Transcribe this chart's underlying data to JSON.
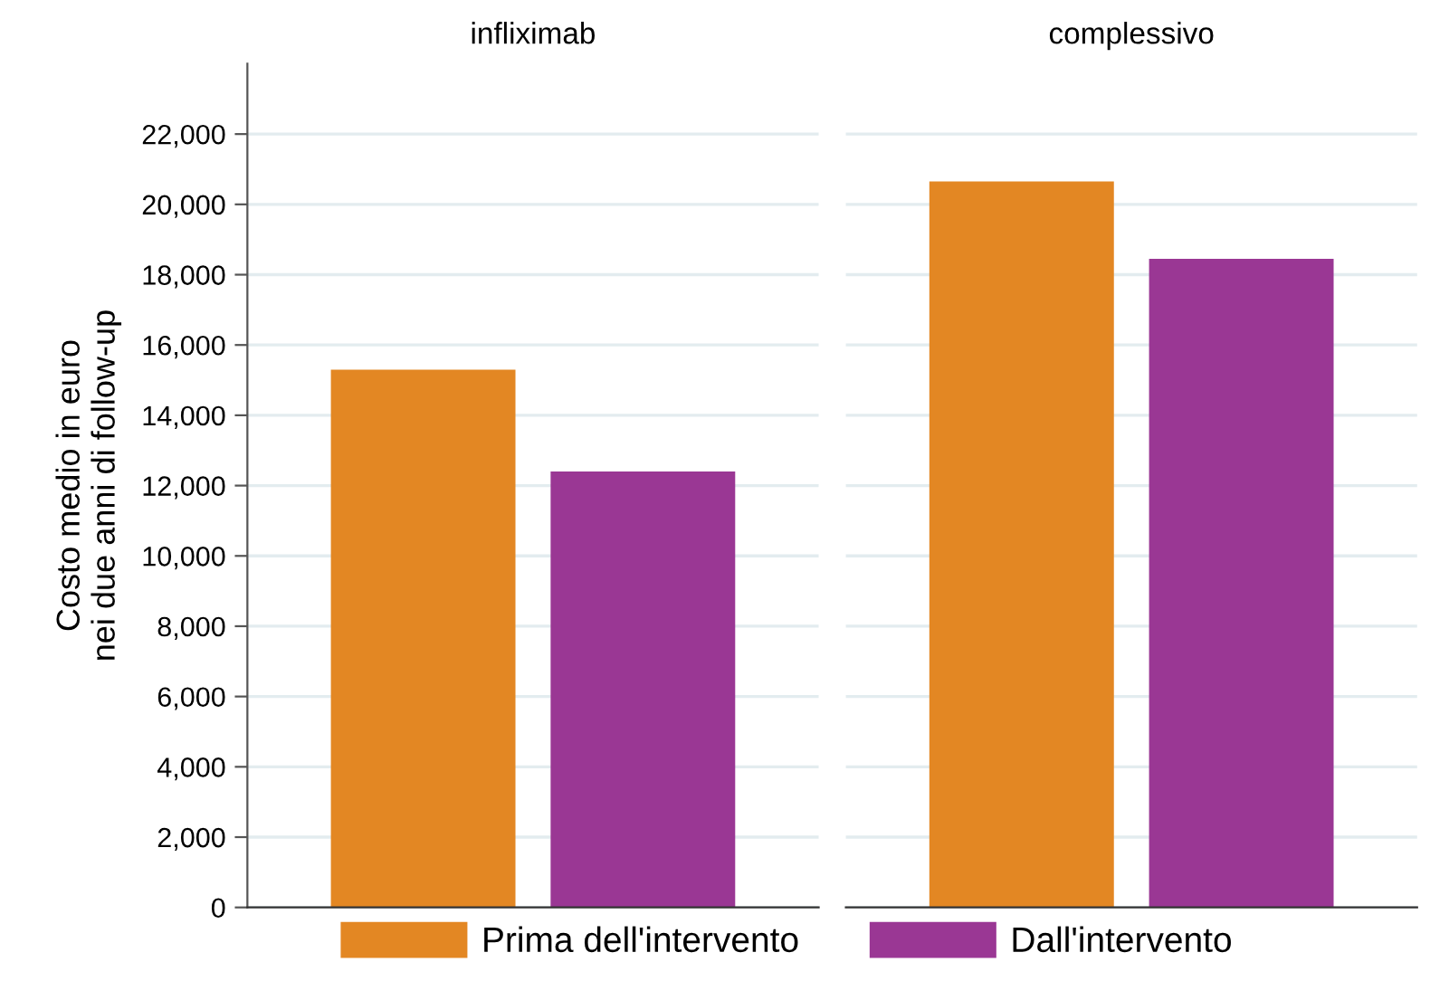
{
  "chart_data": {
    "type": "bar",
    "ylabel": "Costo medio in euro\nnei due anni di follow-up",
    "categories": [
      "infliximab",
      "complessivo"
    ],
    "series": [
      {
        "name": "Prima dell'intervento",
        "color": "#e38723",
        "values": [
          15300,
          20650
        ]
      },
      {
        "name": "Dall'intervento",
        "color": "#9a3794",
        "values": [
          12400,
          18450
        ]
      }
    ],
    "ylim": [
      0,
      24000
    ],
    "yticks": [
      {
        "value": 0,
        "label": "0"
      },
      {
        "value": 2000,
        "label": "2,000"
      },
      {
        "value": 4000,
        "label": "4,000"
      },
      {
        "value": 6000,
        "label": "6,000"
      },
      {
        "value": 8000,
        "label": "8,000"
      },
      {
        "value": 10000,
        "label": "10,000"
      },
      {
        "value": 12000,
        "label": "12,000"
      },
      {
        "value": 14000,
        "label": "14,000"
      },
      {
        "value": 16000,
        "label": "16,000"
      },
      {
        "value": 18000,
        "label": "18,000"
      },
      {
        "value": 20000,
        "label": "20,000"
      },
      {
        "value": 22000,
        "label": "22,000"
      }
    ],
    "grid": "y",
    "legend": "bottom"
  }
}
